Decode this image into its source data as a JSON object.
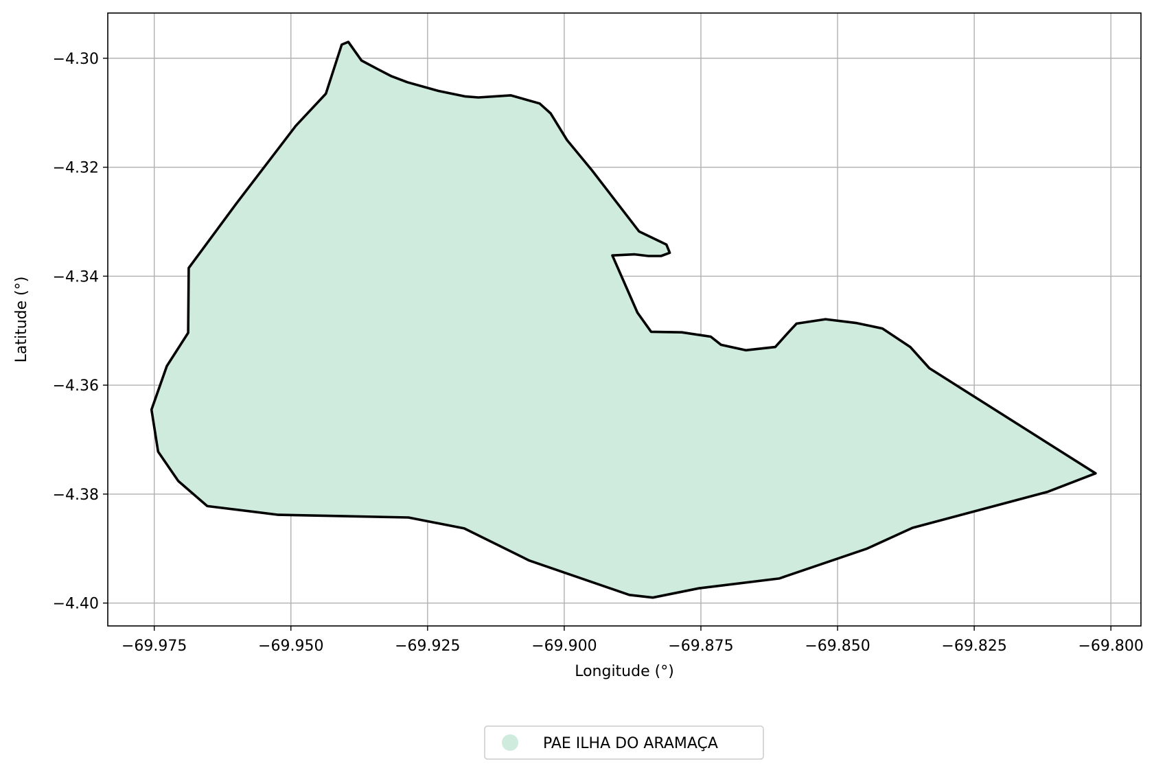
{
  "chart_data": {
    "type": "map",
    "xlabel": "Longitude (°)",
    "ylabel": "Latitude (°)",
    "xlim": [
      -69.9835,
      -69.7945
    ],
    "ylim": [
      -4.4042,
      -4.2917
    ],
    "x_ticks": [
      -69.975,
      -69.95,
      -69.925,
      -69.9,
      -69.875,
      -69.85,
      -69.825,
      -69.8
    ],
    "x_tick_labels": [
      "−69.975",
      "−69.950",
      "−69.925",
      "−69.900",
      "−69.875",
      "−69.850",
      "−69.825",
      "−69.800"
    ],
    "y_ticks": [
      -4.3,
      -4.32,
      -4.34,
      -4.36,
      -4.38,
      -4.4
    ],
    "y_tick_labels": [
      "−4.30",
      "−4.32",
      "−4.34",
      "−4.36",
      "−4.38",
      "−4.40"
    ],
    "grid": true,
    "legend_placement": "bottom-center",
    "series": [
      {
        "name": "PAE ILHA DO ARAMAÇA",
        "fill": "#cfebdd",
        "stroke": "#000000",
        "polygon": [
          [
            -69.9407,
            -4.2975
          ],
          [
            -69.9395,
            -4.297
          ],
          [
            -69.9371,
            -4.3004
          ],
          [
            -69.9341,
            -4.302
          ],
          [
            -69.9316,
            -4.3033
          ],
          [
            -69.9287,
            -4.3044
          ],
          [
            -69.923,
            -4.306
          ],
          [
            -69.9182,
            -4.307
          ],
          [
            -69.9157,
            -4.3072
          ],
          [
            -69.9098,
            -4.3068
          ],
          [
            -69.9045,
            -4.3083
          ],
          [
            -69.9025,
            -4.3101
          ],
          [
            -69.8995,
            -4.315
          ],
          [
            -69.8949,
            -4.3206
          ],
          [
            -69.8863,
            -4.3318
          ],
          [
            -69.8813,
            -4.3342
          ],
          [
            -69.8807,
            -4.3357
          ],
          [
            -69.8823,
            -4.3363
          ],
          [
            -69.8846,
            -4.3363
          ],
          [
            -69.8871,
            -4.336
          ],
          [
            -69.8912,
            -4.3362
          ],
          [
            -69.8866,
            -4.3467
          ],
          [
            -69.8841,
            -4.3502
          ],
          [
            -69.8785,
            -4.3503
          ],
          [
            -69.8732,
            -4.3511
          ],
          [
            -69.8713,
            -4.3526
          ],
          [
            -69.8668,
            -4.3536
          ],
          [
            -69.8614,
            -4.353
          ],
          [
            -69.8589,
            -4.3502
          ],
          [
            -69.8575,
            -4.3487
          ],
          [
            -69.8522,
            -4.3479
          ],
          [
            -69.8465,
            -4.3486
          ],
          [
            -69.8418,
            -4.3496
          ],
          [
            -69.8367,
            -4.353
          ],
          [
            -69.8332,
            -4.3569
          ],
          [
            -69.8028,
            -4.3762
          ],
          [
            -69.8116,
            -4.3796
          ],
          [
            -69.8363,
            -4.3862
          ],
          [
            -69.8446,
            -4.39
          ],
          [
            -69.8607,
            -4.3955
          ],
          [
            -69.8754,
            -4.3973
          ],
          [
            -69.8838,
            -4.399
          ],
          [
            -69.8881,
            -4.3985
          ],
          [
            -69.9064,
            -4.3922
          ],
          [
            -69.9183,
            -4.3863
          ],
          [
            -69.9285,
            -4.3843
          ],
          [
            -69.9523,
            -4.3838
          ],
          [
            -69.9653,
            -4.3822
          ],
          [
            -69.9706,
            -4.3776
          ],
          [
            -69.9743,
            -4.3722
          ],
          [
            -69.9755,
            -4.3645
          ],
          [
            -69.9727,
            -4.3565
          ],
          [
            -69.9688,
            -4.3504
          ],
          [
            -69.9687,
            -4.3385
          ],
          [
            -69.96,
            -4.3267
          ],
          [
            -69.9491,
            -4.3124
          ],
          [
            -69.9436,
            -4.3065
          ],
          [
            -69.9407,
            -4.2975
          ]
        ]
      }
    ]
  }
}
